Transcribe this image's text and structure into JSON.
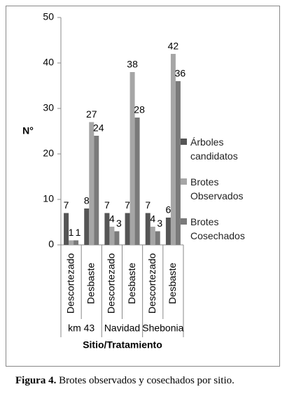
{
  "chart_data": {
    "type": "bar",
    "y_label": "N°",
    "x_label": "Sitio/Tratamiento",
    "groups": [
      "km 43",
      "Navidad",
      "Shebonia"
    ],
    "categories": [
      "Descortezado",
      "Desbaste",
      "Descortezado",
      "Desbaste",
      "Descortezado",
      "Desbaste"
    ],
    "series": [
      {
        "name": "Árboles candidatos",
        "color": "#555555",
        "values": [
          7,
          8,
          7,
          7,
          7,
          6
        ]
      },
      {
        "name": "Brotes Observados",
        "color": "#a6a6a6",
        "values": [
          1,
          27,
          4,
          38,
          4,
          42
        ]
      },
      {
        "name": "Brotes Cosechados",
        "color": "#7a7a7a",
        "values": [
          1,
          24,
          3,
          28,
          3,
          36
        ]
      }
    ],
    "ylim": [
      0,
      50
    ],
    "yticks": [
      0,
      10,
      20,
      30,
      40,
      50
    ]
  },
  "caption": {
    "label": "Figura 4.",
    "text": "Brotes observados y cosechados por sitio."
  }
}
